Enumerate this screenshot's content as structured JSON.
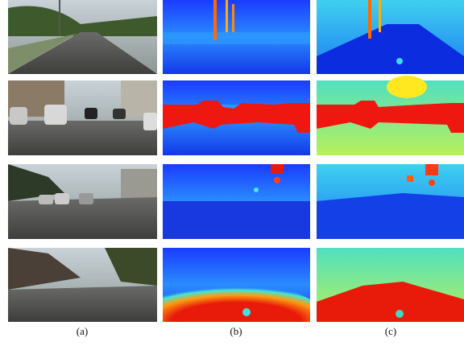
{
  "figure": {
    "captions": [
      "(a)",
      "(b)",
      "(c)"
    ]
  }
}
